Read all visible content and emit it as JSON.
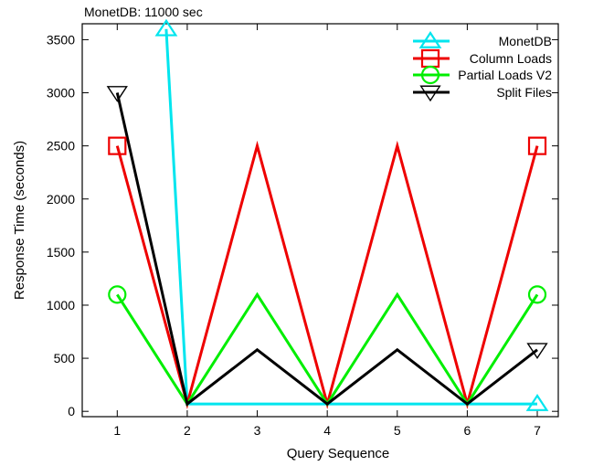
{
  "chart_data": {
    "type": "line",
    "title": "",
    "xlabel": "Query Sequence",
    "ylabel": "Response Time (seconds)",
    "xlim": [
      0.5,
      7.3
    ],
    "ylim": [
      -50,
      3650
    ],
    "x_ticks": [
      1,
      2,
      3,
      4,
      5,
      6,
      7
    ],
    "y_ticks": [
      0,
      500,
      1000,
      1500,
      2000,
      2500,
      3000,
      3500
    ],
    "grid": false,
    "legend_position": "top-right",
    "annotation": "MonetDB:  11000 sec",
    "series": [
      {
        "name": "MonetDB",
        "color": "#00e5ee",
        "marker": "triangle-up",
        "points": [
          [
            1.7,
            3600
          ],
          [
            2,
            70
          ],
          [
            3,
            70
          ],
          [
            4,
            70
          ],
          [
            5,
            70
          ],
          [
            6,
            70
          ],
          [
            7,
            70
          ]
        ],
        "marker_points": [
          [
            1.7,
            3600
          ],
          [
            7,
            70
          ]
        ]
      },
      {
        "name": "Column Loads",
        "color": "#ee0000",
        "marker": "square",
        "points": [
          [
            1,
            2500
          ],
          [
            2,
            70
          ],
          [
            3,
            2500
          ],
          [
            4,
            70
          ],
          [
            5,
            2500
          ],
          [
            6,
            70
          ],
          [
            7,
            2500
          ]
        ],
        "marker_points": [
          [
            1,
            2500
          ],
          [
            7,
            2500
          ]
        ]
      },
      {
        "name": "Partial Loads V2",
        "color": "#00ee00",
        "marker": "circle",
        "points": [
          [
            1,
            1100
          ],
          [
            2,
            70
          ],
          [
            3,
            1100
          ],
          [
            4,
            70
          ],
          [
            5,
            1100
          ],
          [
            6,
            70
          ],
          [
            7,
            1100
          ]
        ],
        "marker_points": [
          [
            1,
            1100
          ],
          [
            7,
            1100
          ]
        ]
      },
      {
        "name": "Split Files",
        "color": "#000000",
        "marker": "triangle-down",
        "points": [
          [
            1,
            3000
          ],
          [
            2,
            70
          ],
          [
            3,
            580
          ],
          [
            4,
            70
          ],
          [
            5,
            580
          ],
          [
            6,
            70
          ],
          [
            7,
            580
          ]
        ],
        "marker_points": [
          [
            1,
            3000
          ],
          [
            7,
            580
          ]
        ]
      }
    ]
  }
}
